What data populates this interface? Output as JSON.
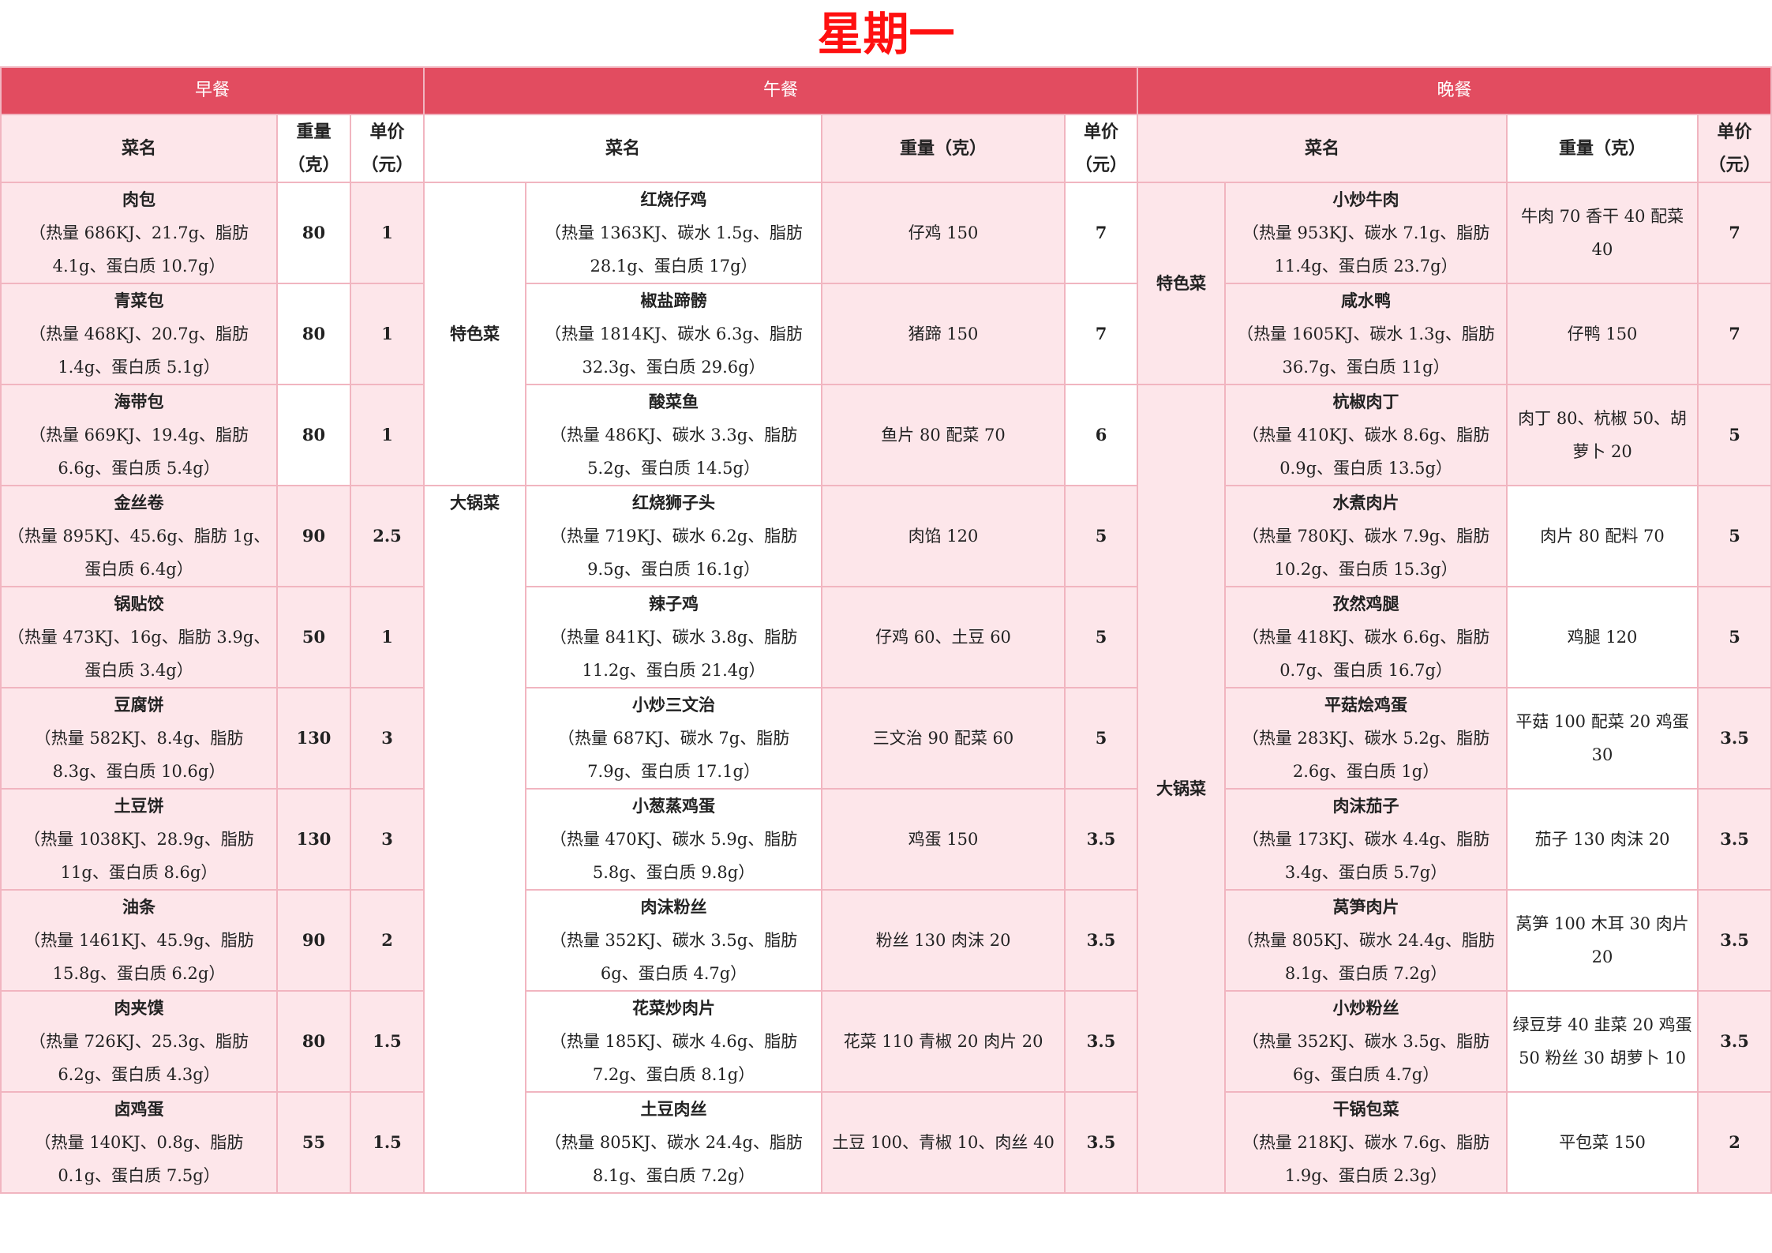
{
  "title": "星期一",
  "meals": {
    "breakfast": "早餐",
    "lunch": "午餐",
    "dinner": "晚餐"
  },
  "headers": {
    "name": "菜名",
    "weight_short": "重量（克）",
    "price": "单价（元）",
    "weight": "重量（克）"
  },
  "colors": {
    "title": "#ff1010",
    "header": "#e24c60",
    "cell_pink": "#fde6ea",
    "border": "#f1b5c0"
  },
  "breakfast": [
    {
      "name": "肉包",
      "nutrition": "（热量 686KJ、21.7g、脂肪 4.1g、蛋白质 10.7g）",
      "weight": "80",
      "price": "1"
    },
    {
      "name": "青菜包",
      "nutrition": "（热量 468KJ、20.7g、脂肪 1.4g、蛋白质 5.1g）",
      "weight": "80",
      "price": "1"
    },
    {
      "name": "海带包",
      "nutrition": "（热量 669KJ、19.4g、脂肪 6.6g、蛋白质 5.4g）",
      "weight": "80",
      "price": "1"
    },
    {
      "name": "金丝卷",
      "nutrition": "（热量 895KJ、45.6g、脂肪 1g、蛋白质 6.4g）",
      "weight": "90",
      "price": "2.5"
    },
    {
      "name": "锅贴饺",
      "nutrition": "（热量 473KJ、16g、脂肪 3.9g、蛋白质 3.4g）",
      "weight": "50",
      "price": "1"
    },
    {
      "name": "豆腐饼",
      "nutrition": "（热量 582KJ、8.4g、脂肪 8.3g、蛋白质 10.6g）",
      "weight": "130",
      "price": "3"
    },
    {
      "name": "土豆饼",
      "nutrition": "（热量 1038KJ、28.9g、脂肪 11g、蛋白质 8.6g）",
      "weight": "130",
      "price": "3"
    },
    {
      "name": "油条",
      "nutrition": "（热量 1461KJ、45.9g、脂肪 15.8g、蛋白质 6.2g）",
      "weight": "90",
      "price": "2"
    },
    {
      "name": "肉夹馍",
      "nutrition": "（热量 726KJ、25.3g、脂肪 6.2g、蛋白质 4.3g）",
      "weight": "80",
      "price": "1.5"
    },
    {
      "name": "卤鸡蛋",
      "nutrition": "（热量 140KJ、0.8g、脂肪 0.1g、蛋白质 7.5g）",
      "weight": "55",
      "price": "1.5"
    }
  ],
  "lunch": {
    "categories": [
      {
        "label": "特色菜",
        "count": 3
      },
      {
        "label": "大锅菜",
        "count": 7
      }
    ],
    "items": [
      {
        "name": "红烧仔鸡",
        "nutrition": "（热量 1363KJ、碳水 1.5g、脂肪 28.1g、蛋白质 17g）",
        "weight": "仔鸡 150",
        "price": "7"
      },
      {
        "name": "椒盐蹄髈",
        "nutrition": "（热量 1814KJ、碳水 6.3g、脂肪 32.3g、蛋白质 29.6g）",
        "weight": "猪蹄 150",
        "price": "7"
      },
      {
        "name": "酸菜鱼",
        "nutrition": "（热量 486KJ、碳水 3.3g、脂肪 5.2g、蛋白质 14.5g）",
        "weight": "鱼片 80 配菜 70",
        "price": "6"
      },
      {
        "name": "红烧狮子头",
        "nutrition": "（热量 719KJ、碳水 6.2g、脂肪 9.5g、蛋白质 16.1g）",
        "weight": "肉馅 120",
        "price": "5"
      },
      {
        "name": "辣子鸡",
        "nutrition": "（热量 841KJ、碳水 3.8g、脂肪 11.2g、蛋白质 21.4g）",
        "weight": "仔鸡 60、土豆 60",
        "price": "5"
      },
      {
        "name": "小炒三文治",
        "nutrition": "（热量 687KJ、碳水 7g、脂肪 7.9g、蛋白质 17.1g）",
        "weight": "三文治 90 配菜 60",
        "price": "5"
      },
      {
        "name": "小葱蒸鸡蛋",
        "nutrition": "（热量 470KJ、碳水 5.9g、脂肪 5.8g、蛋白质 9.8g）",
        "weight": "鸡蛋 150",
        "price": "3.5"
      },
      {
        "name": "肉沫粉丝",
        "nutrition": "（热量 352KJ、碳水 3.5g、脂肪 6g、蛋白质 4.7g）",
        "weight": "粉丝 130 肉沫 20",
        "price": "3.5"
      },
      {
        "name": "花菜炒肉片",
        "nutrition": "（热量 185KJ、碳水 4.6g、脂肪 7.2g、蛋白质 8.1g）",
        "weight": "花菜 110 青椒 20 肉片 20",
        "price": "3.5"
      },
      {
        "name": "土豆肉丝",
        "nutrition": "（热量 805KJ、碳水 24.4g、脂肪 8.1g、蛋白质 7.2g）",
        "weight": "土豆 100、青椒 10、肉丝 40",
        "price": "3.5"
      }
    ]
  },
  "dinner": {
    "categories": [
      {
        "label": "特色菜",
        "count": 2
      },
      {
        "label": "大锅菜",
        "count": 8
      }
    ],
    "items": [
      {
        "name": "小炒牛肉",
        "nutrition": "（热量 953KJ、碳水 7.1g、脂肪 11.4g、蛋白质 23.7g）",
        "weight": "牛肉 70 香干 40 配菜 40",
        "price": "7"
      },
      {
        "name": "咸水鸭",
        "nutrition": "（热量 1605KJ、碳水 1.3g、脂肪 36.7g、蛋白质 11g）",
        "weight": "仔鸭 150",
        "price": "7"
      },
      {
        "name": "杭椒肉丁",
        "nutrition": "（热量 410KJ、碳水 8.6g、脂肪 0.9g、蛋白质 13.5g）",
        "weight": "肉丁 80、杭椒 50、胡萝卜 20",
        "price": "5"
      },
      {
        "name": "水煮肉片",
        "nutrition": "（热量 780KJ、碳水 7.9g、脂肪 10.2g、蛋白质 15.3g）",
        "weight": "肉片 80 配料 70",
        "price": "5"
      },
      {
        "name": "孜然鸡腿",
        "nutrition": "（热量 418KJ、碳水 6.6g、脂肪 0.7g、蛋白质 16.7g）",
        "weight": "鸡腿 120",
        "price": "5"
      },
      {
        "name": "平菇烩鸡蛋",
        "nutrition": "（热量 283KJ、碳水 5.2g、脂肪 2.6g、蛋白质 1g）",
        "weight": "平菇 100 配菜 20 鸡蛋 30",
        "price": "3.5"
      },
      {
        "name": "肉沫茄子",
        "nutrition": "（热量 173KJ、碳水 4.4g、脂肪 3.4g、蛋白质 5.7g）",
        "weight": "茄子 130 肉沫 20",
        "price": "3.5"
      },
      {
        "name": "莴笋肉片",
        "nutrition": "（热量 805KJ、碳水 24.4g、脂肪 8.1g、蛋白质 7.2g）",
        "weight": "莴笋 100 木耳 30 肉片 20",
        "price": "3.5"
      },
      {
        "name": "小炒粉丝",
        "nutrition": "（热量 352KJ、碳水 3.5g、脂肪 6g、蛋白质 4.7g）",
        "weight": "绿豆芽 40 韭菜 20 鸡蛋 50 粉丝 30 胡萝卜 10",
        "price": "3.5"
      },
      {
        "name": "干锅包菜",
        "nutrition": "（热量 218KJ、碳水 7.6g、脂肪 1.9g、蛋白质 2.3g）",
        "weight": "平包菜 150",
        "price": "2"
      }
    ]
  }
}
